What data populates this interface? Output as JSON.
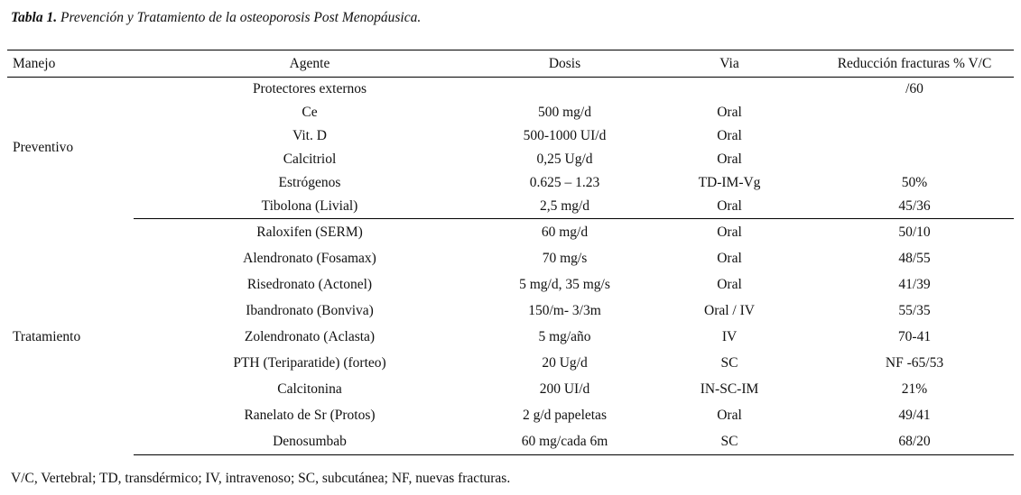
{
  "title": {
    "label": "Tabla 1.",
    "text": " Prevención y Tratamiento de la osteoporosis Post Menopáusica."
  },
  "table": {
    "headers": [
      "Manejo",
      "Agente",
      "Dosis",
      "Via",
      "Reducción fracturas % V/C"
    ],
    "groups": [
      {
        "name": "Preventivo",
        "rows": [
          [
            "Protectores externos",
            "",
            "",
            "/60"
          ],
          [
            "Ce",
            "500 mg/d",
            "Oral",
            ""
          ],
          [
            "Vit. D",
            "500-1000 UI/d",
            "Oral",
            ""
          ],
          [
            "Calcitriol",
            "0,25 Ug/d",
            "Oral",
            ""
          ],
          [
            "Estrógenos",
            "0.625 – 1.23",
            "TD-IM-Vg",
            "50%"
          ],
          [
            "Tibolona (Livial)",
            "2,5 mg/d",
            "Oral",
            "45/36"
          ]
        ]
      },
      {
        "name": "Tratamiento",
        "rows": [
          [
            "Raloxifen (SERM)",
            "60 mg/d",
            "Oral",
            "50/10"
          ],
          [
            "Alendronato (Fosamax)",
            "70 mg/s",
            "Oral",
            "48/55"
          ],
          [
            "Risedronato (Actonel)",
            "5 mg/d, 35 mg/s",
            "Oral",
            "41/39"
          ],
          [
            "Ibandronato (Bonviva)",
            "150/m- 3/3m",
            "Oral / IV",
            "55/35"
          ],
          [
            "Zolendronato (Aclasta)",
            "5 mg/año",
            "IV",
            "70-41"
          ],
          [
            "PTH (Teriparatide) (forteo)",
            "20 Ug/d",
            "SC",
            "NF -65/53"
          ],
          [
            "Calcitonina",
            "200 UI/d",
            "IN-SC-IM",
            "21%"
          ],
          [
            "Ranelato de Sr (Protos)",
            "2 g/d papeletas",
            "Oral",
            "49/41"
          ],
          [
            "Denosumbab",
            "60 mg/cada 6m",
            "SC",
            "68/20"
          ]
        ]
      }
    ]
  },
  "footnote": "V/C, Vertebral; TD, transdérmico; IV, intravenoso; SC, subcutánea; NF, nuevas fracturas."
}
